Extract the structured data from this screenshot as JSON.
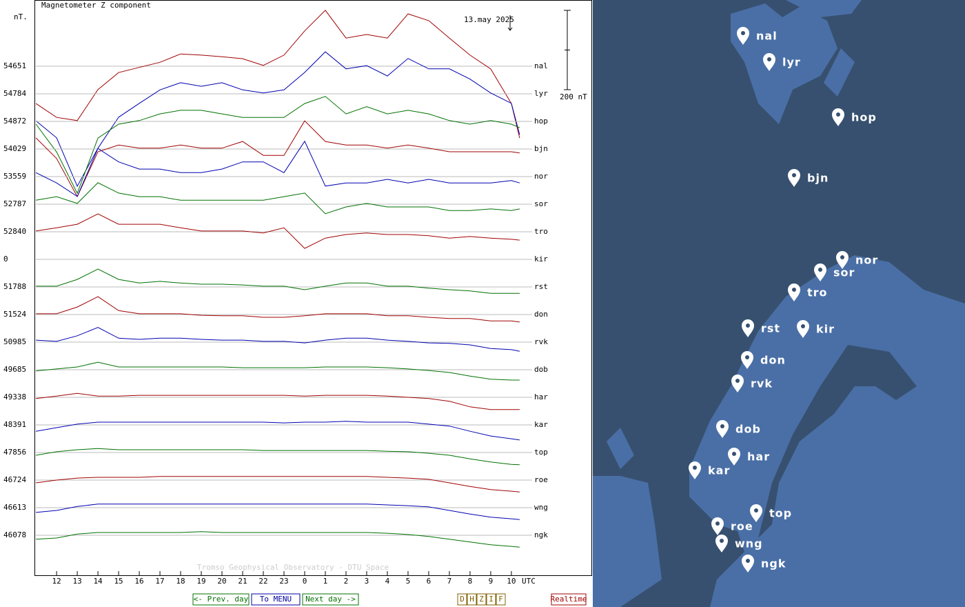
{
  "chart_data": {
    "type": "line",
    "title": "Magnetometer Z component",
    "y_unit": "nT.",
    "date": "13.may 2025",
    "scale_bar": {
      "value": 200,
      "label": "200 nT"
    },
    "x_label": "UTC",
    "footer": "Tromso Geophysical Observatory - DTU Space",
    "xlim": [
      10.93,
      37.87
    ],
    "xticks": [
      12,
      13,
      14,
      15,
      16,
      17,
      18,
      19,
      20,
      21,
      22,
      23,
      {
        "value": 24,
        "label": "0"
      },
      {
        "value": 25,
        "label": "1"
      },
      {
        "value": 26,
        "label": "2"
      },
      {
        "value": 27,
        "label": "3"
      },
      {
        "value": 28,
        "label": "4"
      },
      {
        "value": 29,
        "label": "5"
      },
      {
        "value": 30,
        "label": "6"
      },
      {
        "value": 31,
        "label": "7"
      },
      {
        "value": 32,
        "label": "8"
      },
      {
        "value": 33,
        "label": "9"
      },
      {
        "value": 34,
        "label": "10"
      }
    ],
    "x": [
      11,
      12,
      13,
      14,
      15,
      16,
      17,
      18,
      19,
      20,
      21,
      22,
      23,
      24,
      25,
      26,
      27,
      28,
      29,
      30,
      31,
      32,
      33,
      34,
      34.4
    ],
    "series": [
      {
        "name": "nal",
        "baseline": 54651,
        "color": "#a00000",
        "values": [
          -94,
          -129,
          -137,
          -59,
          -16,
          -3,
          10,
          31,
          28,
          24,
          19,
          2,
          28,
          89,
          141,
          71,
          80,
          71,
          132,
          115,
          71,
          28,
          -7,
          -94,
          -181
        ]
      },
      {
        "name": "lyr",
        "baseline": 54784,
        "color": "#0000b0",
        "values": [
          -68,
          -111,
          -233,
          -137,
          -59,
          -24,
          10,
          28,
          19,
          28,
          10,
          2,
          10,
          54,
          106,
          63,
          71,
          45,
          89,
          63,
          63,
          37,
          2,
          -24,
          -103
        ]
      },
      {
        "name": "hop",
        "baseline": 54872,
        "color": "#007000",
        "values": [
          -7,
          -77,
          -181,
          -42,
          -7,
          2,
          19,
          28,
          28,
          19,
          10,
          10,
          10,
          45,
          63,
          19,
          37,
          19,
          28,
          19,
          2,
          -7,
          2,
          -7,
          -16
        ]
      },
      {
        "name": "bjn",
        "baseline": 54029,
        "color": "#a00000",
        "values": [
          28,
          -24,
          -120,
          -7,
          10,
          2,
          2,
          10,
          2,
          2,
          19,
          -16,
          -16,
          71,
          19,
          10,
          10,
          2,
          10,
          2,
          -7,
          -7,
          -7,
          -7,
          -10
        ]
      },
      {
        "name": "nor",
        "baseline": 53559,
        "color": "#0000b0",
        "values": [
          10,
          -16,
          -50,
          71,
          37,
          19,
          19,
          10,
          10,
          19,
          37,
          37,
          10,
          89,
          -24,
          -16,
          -16,
          -7,
          -16,
          -7,
          -16,
          -16,
          -16,
          -10,
          -16
        ]
      },
      {
        "name": "sor",
        "baseline": 52787,
        "color": "#007000",
        "values": [
          10,
          19,
          2,
          54,
          28,
          19,
          19,
          10,
          10,
          10,
          10,
          10,
          19,
          28,
          -24,
          -7,
          2,
          -7,
          -7,
          -7,
          -16,
          -16,
          -12,
          -16,
          -12
        ]
      },
      {
        "name": "tro",
        "baseline": 52840,
        "color": "#a00000",
        "values": [
          2,
          10,
          19,
          45,
          19,
          19,
          19,
          10,
          2,
          2,
          2,
          -3,
          10,
          -42,
          -16,
          -7,
          -3,
          -7,
          -7,
          -10,
          -16,
          -12,
          -16,
          -19,
          -21
        ]
      },
      {
        "name": "kir",
        "baseline": 0,
        "color": "#0000b0"
      },
      {
        "name": "rst",
        "baseline": 51788,
        "color": "#007000",
        "values": [
          2,
          2,
          19,
          45,
          19,
          10,
          14,
          10,
          7,
          7,
          5,
          2,
          2,
          -7,
          2,
          10,
          10,
          2,
          2,
          -3,
          -7,
          -10,
          -16,
          -16,
          -16
        ]
      },
      {
        "name": "don",
        "baseline": 51524,
        "color": "#a00000",
        "values": [
          2,
          2,
          19,
          45,
          10,
          2,
          2,
          2,
          -2,
          -3,
          -3,
          -7,
          -7,
          -3,
          2,
          2,
          2,
          -3,
          -3,
          -7,
          -10,
          -10,
          -16,
          -16,
          -19
        ]
      },
      {
        "name": "rvk",
        "baseline": 50985,
        "color": "#0000b0",
        "values": [
          5,
          2,
          16,
          37,
          10,
          7,
          10,
          10,
          7,
          5,
          5,
          2,
          2,
          -2,
          5,
          10,
          10,
          5,
          2,
          -2,
          -3,
          -7,
          -16,
          -19,
          -23
        ]
      },
      {
        "name": "dob",
        "baseline": 49685,
        "color": "#007000",
        "values": [
          -3,
          2,
          7,
          19,
          7,
          7,
          7,
          7,
          7,
          7,
          5,
          5,
          5,
          5,
          7,
          7,
          7,
          5,
          2,
          -2,
          -7,
          -16,
          -24,
          -26,
          -26
        ]
      },
      {
        "name": "har",
        "baseline": 49338,
        "color": "#a00000",
        "values": [
          -3,
          3,
          10,
          3,
          3,
          5,
          5,
          5,
          5,
          5,
          5,
          5,
          5,
          3,
          5,
          5,
          5,
          3,
          0,
          -3,
          -10,
          -24,
          -31,
          -31,
          -31
        ]
      },
      {
        "name": "kar",
        "baseline": 48391,
        "color": "#0000b0",
        "values": [
          -16,
          -7,
          2,
          7,
          7,
          7,
          7,
          7,
          7,
          7,
          7,
          7,
          5,
          7,
          7,
          9,
          7,
          7,
          7,
          2,
          -3,
          -16,
          -28,
          -35,
          -38
        ]
      },
      {
        "name": "top",
        "baseline": 47856,
        "color": "#007000",
        "values": [
          -7,
          2,
          7,
          10,
          7,
          7,
          7,
          7,
          7,
          7,
          7,
          5,
          5,
          5,
          5,
          5,
          5,
          3,
          2,
          -2,
          -7,
          -16,
          -24,
          -30,
          -31
        ]
      },
      {
        "name": "roe",
        "baseline": 46724,
        "color": "#a00000",
        "values": [
          -7,
          0,
          5,
          7,
          7,
          7,
          9,
          9,
          9,
          9,
          9,
          9,
          9,
          9,
          9,
          9,
          9,
          7,
          5,
          2,
          -7,
          -16,
          -24,
          -28,
          -30
        ]
      },
      {
        "name": "wng",
        "baseline": 46613,
        "color": "#0000b0",
        "values": [
          -12,
          -7,
          3,
          9,
          9,
          9,
          9,
          9,
          9,
          9,
          9,
          9,
          9,
          9,
          9,
          9,
          9,
          7,
          5,
          2,
          -7,
          -16,
          -24,
          -28,
          -30
        ]
      },
      {
        "name": "ngk",
        "baseline": 46078,
        "color": "#007000",
        "values": [
          -10,
          -7,
          3,
          7,
          7,
          7,
          7,
          7,
          9,
          7,
          7,
          7,
          7,
          7,
          7,
          7,
          7,
          5,
          2,
          -3,
          -10,
          -17,
          -24,
          -28,
          -30
        ]
      }
    ]
  },
  "nav": {
    "prev": "<- Prev. day",
    "menu": "To MENU",
    "next": "Next day ->",
    "components": [
      "D",
      "H",
      "Z",
      "I",
      "F"
    ],
    "realtime": "Realtime"
  },
  "map": {
    "stations": [
      "nal",
      "lyr",
      "hop",
      "bjn",
      "nor",
      "sor",
      "tro",
      "rst",
      "kir",
      "don",
      "rvk",
      "dob",
      "har",
      "kar",
      "top",
      "roe",
      "wng",
      "ngk"
    ]
  }
}
